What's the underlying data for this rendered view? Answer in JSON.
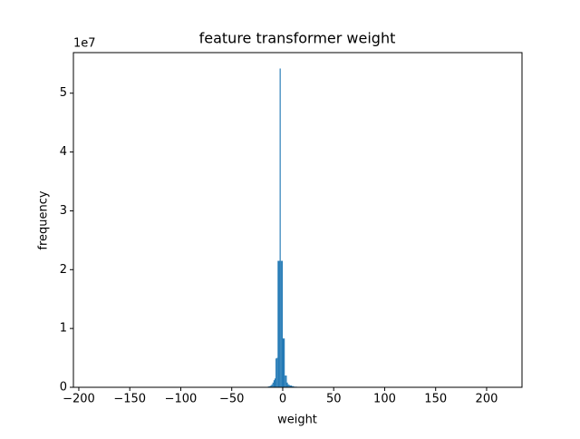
{
  "chart_data": {
    "type": "histogram",
    "title": "feature transformer weight",
    "x_label": "weight",
    "y_label": "frequency",
    "y_offset_label": "1e7",
    "color": "#1f77b4",
    "bins": [
      -16,
      -15,
      -14,
      -13,
      -12,
      -11,
      -10,
      -9,
      -8,
      -7,
      -6,
      -5,
      -4,
      -3,
      -2,
      -1,
      0,
      1,
      2,
      3,
      4,
      5,
      6,
      7,
      8,
      9,
      10,
      11,
      12,
      13,
      14,
      15,
      16
    ],
    "counts": [
      50000,
      100000,
      150000,
      200000,
      300000,
      500000,
      800000,
      1200000,
      1500000,
      4900000,
      5000000,
      21500000,
      21500000,
      54200000,
      21500000,
      21500000,
      8300000,
      8300000,
      2000000,
      2000000,
      800000,
      500000,
      400000,
      300000,
      300000,
      200000,
      200000,
      100000,
      100000,
      100000,
      50000,
      50000
    ],
    "xlim": [
      -205.3,
      234.7
    ],
    "ylim": [
      0,
      56900000
    ],
    "xticks": [
      {
        "value": -200,
        "label": "−200"
      },
      {
        "value": -150,
        "label": "−150"
      },
      {
        "value": -100,
        "label": "−100"
      },
      {
        "value": -50,
        "label": "−50"
      },
      0,
      50,
      100,
      150,
      200
    ],
    "yticks": [
      0,
      {
        "value": 10000000,
        "label": "1"
      },
      {
        "value": 20000000,
        "label": "2"
      },
      {
        "value": 30000000,
        "label": "3"
      },
      {
        "value": 40000000,
        "label": "4"
      },
      {
        "value": 50000000,
        "label": "5"
      }
    ]
  }
}
